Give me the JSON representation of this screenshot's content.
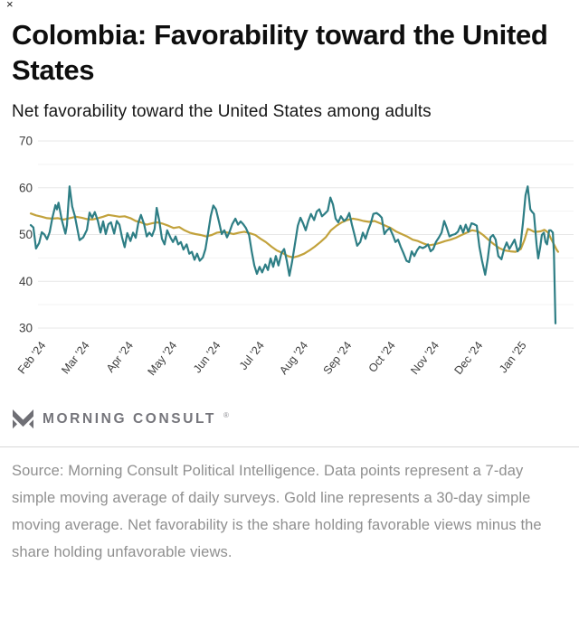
{
  "window": {
    "close_label": "×"
  },
  "header": {
    "title": "Colombia: Favorability toward the United States",
    "subtitle": "Net favorability toward the United States among adults"
  },
  "footer": {
    "logo_text": "MORNING CONSULT",
    "logo_registered": "®",
    "source": "Source: Morning Consult Political Intelligence. Data points represent a 7-day simple moving average of daily surveys. Gold line represents a 30-day simple moving average. Net favorability is the share holding favorable views minus the share holding unfavorable views."
  },
  "chart_data": {
    "type": "line",
    "title": "Colombia: Favorability toward the United States",
    "ylabel": "Net favorability",
    "ylim": [
      30,
      70
    ],
    "y_major_ticks": [
      70,
      60,
      50,
      40,
      30
    ],
    "y_minor_ticks": [
      65,
      55,
      45,
      35
    ],
    "grid": "horizontal",
    "legend": "none",
    "x_tick_labels": [
      "Feb '24",
      "Mar '24",
      "Apr '24",
      "May '24",
      "Jun '24",
      "Jul '24",
      "Aug '24",
      "Sep '24",
      "Oct '24",
      "Nov '24",
      "Dec '24",
      "Jan '25"
    ],
    "colors": {
      "teal_7day": "#2e7e85",
      "gold_30day": "#c2a23c"
    },
    "series": [
      {
        "name": "30-day simple moving average",
        "color": "#c2a23c",
        "points": [
          [
            0.0,
            54.5
          ],
          [
            0.01,
            54.1
          ],
          [
            0.021,
            53.8
          ],
          [
            0.031,
            53.5
          ],
          [
            0.041,
            53.4
          ],
          [
            0.052,
            53.5
          ],
          [
            0.062,
            53.2
          ],
          [
            0.074,
            53.5
          ],
          [
            0.086,
            53.8
          ],
          [
            0.097,
            53.6
          ],
          [
            0.107,
            53.3
          ],
          [
            0.117,
            53.2
          ],
          [
            0.128,
            53.5
          ],
          [
            0.138,
            53.8
          ],
          [
            0.148,
            54.2
          ],
          [
            0.159,
            54.0
          ],
          [
            0.169,
            53.8
          ],
          [
            0.179,
            53.9
          ],
          [
            0.19,
            53.5
          ],
          [
            0.2,
            52.9
          ],
          [
            0.21,
            52.6
          ],
          [
            0.221,
            52.1
          ],
          [
            0.231,
            52.4
          ],
          [
            0.241,
            52.6
          ],
          [
            0.252,
            52.3
          ],
          [
            0.262,
            51.9
          ],
          [
            0.272,
            51.4
          ],
          [
            0.283,
            51.6
          ],
          [
            0.293,
            50.9
          ],
          [
            0.303,
            50.4
          ],
          [
            0.314,
            50.1
          ],
          [
            0.324,
            49.9
          ],
          [
            0.334,
            49.6
          ],
          [
            0.345,
            49.9
          ],
          [
            0.355,
            50.4
          ],
          [
            0.366,
            50.6
          ],
          [
            0.376,
            50.4
          ],
          [
            0.386,
            50.1
          ],
          [
            0.397,
            50.4
          ],
          [
            0.407,
            50.6
          ],
          [
            0.417,
            50.3
          ],
          [
            0.428,
            49.9
          ],
          [
            0.438,
            49.1
          ],
          [
            0.448,
            48.4
          ],
          [
            0.459,
            47.4
          ],
          [
            0.469,
            46.6
          ],
          [
            0.479,
            46.1
          ],
          [
            0.49,
            45.4
          ],
          [
            0.5,
            45.1
          ],
          [
            0.51,
            45.4
          ],
          [
            0.521,
            45.9
          ],
          [
            0.531,
            46.6
          ],
          [
            0.541,
            47.4
          ],
          [
            0.552,
            48.4
          ],
          [
            0.562,
            49.4
          ],
          [
            0.572,
            50.9
          ],
          [
            0.583,
            51.9
          ],
          [
            0.593,
            52.6
          ],
          [
            0.603,
            53.1
          ],
          [
            0.614,
            53.4
          ],
          [
            0.624,
            53.2
          ],
          [
            0.634,
            52.9
          ],
          [
            0.645,
            52.7
          ],
          [
            0.655,
            52.9
          ],
          [
            0.666,
            52.4
          ],
          [
            0.676,
            51.9
          ],
          [
            0.686,
            51.4
          ],
          [
            0.697,
            50.6
          ],
          [
            0.707,
            50.1
          ],
          [
            0.717,
            49.6
          ],
          [
            0.728,
            48.9
          ],
          [
            0.738,
            48.6
          ],
          [
            0.748,
            48.1
          ],
          [
            0.759,
            47.7
          ],
          [
            0.769,
            47.9
          ],
          [
            0.779,
            48.2
          ],
          [
            0.79,
            48.6
          ],
          [
            0.8,
            48.9
          ],
          [
            0.81,
            49.3
          ],
          [
            0.821,
            49.9
          ],
          [
            0.831,
            50.4
          ],
          [
            0.841,
            50.9
          ],
          [
            0.852,
            50.7
          ],
          [
            0.862,
            49.9
          ],
          [
            0.872,
            48.9
          ],
          [
            0.883,
            47.9
          ],
          [
            0.893,
            47.1
          ],
          [
            0.903,
            46.6
          ],
          [
            0.914,
            46.4
          ],
          [
            0.924,
            46.3
          ],
          [
            0.934,
            46.9
          ],
          [
            0.941,
            48.9
          ],
          [
            0.947,
            51.2
          ],
          [
            0.952,
            51.0
          ],
          [
            0.959,
            50.6
          ],
          [
            0.966,
            50.6
          ],
          [
            0.972,
            50.7
          ],
          [
            0.979,
            51.0
          ],
          [
            0.986,
            50.4
          ],
          [
            0.991,
            49.2
          ],
          [
            0.997,
            47.9
          ],
          [
            1.002,
            46.8
          ],
          [
            1.005,
            46.3
          ]
        ]
      },
      {
        "name": "7-day simple moving average",
        "color": "#2e7e85",
        "points": [
          [
            0.0,
            52.0
          ],
          [
            0.005,
            51.5
          ],
          [
            0.01,
            47.0
          ],
          [
            0.016,
            48.2
          ],
          [
            0.021,
            50.5
          ],
          [
            0.026,
            50.0
          ],
          [
            0.031,
            49.0
          ],
          [
            0.036,
            50.5
          ],
          [
            0.041,
            53.5
          ],
          [
            0.047,
            56.3
          ],
          [
            0.05,
            55.4
          ],
          [
            0.053,
            56.8
          ],
          [
            0.059,
            53.2
          ],
          [
            0.066,
            50.2
          ],
          [
            0.069,
            52.0
          ],
          [
            0.074,
            60.3
          ],
          [
            0.079,
            56.0
          ],
          [
            0.084,
            54.0
          ],
          [
            0.093,
            48.8
          ],
          [
            0.1,
            49.4
          ],
          [
            0.107,
            51.0
          ],
          [
            0.112,
            54.7
          ],
          [
            0.117,
            53.6
          ],
          [
            0.122,
            54.8
          ],
          [
            0.128,
            52.9
          ],
          [
            0.133,
            50.4
          ],
          [
            0.138,
            52.8
          ],
          [
            0.143,
            50.1
          ],
          [
            0.148,
            52.2
          ],
          [
            0.153,
            52.6
          ],
          [
            0.159,
            50.2
          ],
          [
            0.164,
            52.9
          ],
          [
            0.169,
            52.1
          ],
          [
            0.174,
            49.4
          ],
          [
            0.179,
            47.3
          ],
          [
            0.184,
            50.3
          ],
          [
            0.19,
            48.6
          ],
          [
            0.195,
            50.4
          ],
          [
            0.2,
            49.3
          ],
          [
            0.205,
            52.5
          ],
          [
            0.21,
            54.2
          ],
          [
            0.216,
            52.2
          ],
          [
            0.221,
            49.6
          ],
          [
            0.226,
            50.4
          ],
          [
            0.231,
            49.7
          ],
          [
            0.236,
            51.2
          ],
          [
            0.24,
            55.7
          ],
          [
            0.245,
            52.9
          ],
          [
            0.25,
            49.1
          ],
          [
            0.255,
            47.9
          ],
          [
            0.26,
            50.9
          ],
          [
            0.266,
            49.4
          ],
          [
            0.271,
            48.4
          ],
          [
            0.276,
            49.6
          ],
          [
            0.281,
            47.9
          ],
          [
            0.286,
            48.4
          ],
          [
            0.291,
            46.8
          ],
          [
            0.297,
            47.9
          ],
          [
            0.302,
            45.9
          ],
          [
            0.307,
            46.3
          ],
          [
            0.312,
            44.6
          ],
          [
            0.317,
            45.9
          ],
          [
            0.322,
            44.4
          ],
          [
            0.328,
            45.1
          ],
          [
            0.333,
            46.9
          ],
          [
            0.338,
            50.3
          ],
          [
            0.343,
            53.9
          ],
          [
            0.348,
            56.2
          ],
          [
            0.353,
            55.4
          ],
          [
            0.359,
            52.6
          ],
          [
            0.364,
            50.1
          ],
          [
            0.369,
            50.9
          ],
          [
            0.374,
            49.4
          ],
          [
            0.379,
            50.6
          ],
          [
            0.384,
            52.2
          ],
          [
            0.39,
            53.4
          ],
          [
            0.395,
            52.1
          ],
          [
            0.4,
            52.8
          ],
          [
            0.405,
            52.2
          ],
          [
            0.41,
            51.4
          ],
          [
            0.416,
            49.9
          ],
          [
            0.421,
            46.4
          ],
          [
            0.426,
            43.4
          ],
          [
            0.431,
            41.6
          ],
          [
            0.436,
            43.1
          ],
          [
            0.441,
            41.9
          ],
          [
            0.447,
            43.6
          ],
          [
            0.452,
            42.4
          ],
          [
            0.457,
            44.9
          ],
          [
            0.462,
            43.1
          ],
          [
            0.467,
            45.4
          ],
          [
            0.472,
            43.4
          ],
          [
            0.478,
            46.1
          ],
          [
            0.483,
            46.9
          ],
          [
            0.488,
            44.4
          ],
          [
            0.493,
            41.2
          ],
          [
            0.498,
            44.1
          ],
          [
            0.503,
            47.6
          ],
          [
            0.509,
            51.9
          ],
          [
            0.514,
            53.6
          ],
          [
            0.519,
            52.4
          ],
          [
            0.524,
            50.9
          ],
          [
            0.529,
            52.9
          ],
          [
            0.534,
            54.4
          ],
          [
            0.54,
            53.1
          ],
          [
            0.545,
            54.9
          ],
          [
            0.55,
            55.4
          ],
          [
            0.555,
            53.9
          ],
          [
            0.56,
            54.4
          ],
          [
            0.566,
            55.1
          ],
          [
            0.571,
            57.9
          ],
          [
            0.576,
            56.4
          ],
          [
            0.581,
            53.4
          ],
          [
            0.586,
            52.6
          ],
          [
            0.591,
            53.9
          ],
          [
            0.597,
            52.9
          ],
          [
            0.602,
            53.4
          ],
          [
            0.607,
            54.6
          ],
          [
            0.612,
            52.1
          ],
          [
            0.617,
            49.9
          ],
          [
            0.622,
            47.6
          ],
          [
            0.628,
            48.4
          ],
          [
            0.633,
            50.4
          ],
          [
            0.638,
            49.1
          ],
          [
            0.643,
            50.9
          ],
          [
            0.648,
            52.4
          ],
          [
            0.653,
            54.4
          ],
          [
            0.659,
            54.6
          ],
          [
            0.664,
            54.2
          ],
          [
            0.669,
            53.6
          ],
          [
            0.674,
            50.1
          ],
          [
            0.679,
            50.9
          ],
          [
            0.684,
            51.4
          ],
          [
            0.69,
            49.9
          ],
          [
            0.695,
            48.4
          ],
          [
            0.7,
            48.9
          ],
          [
            0.705,
            47.4
          ],
          [
            0.71,
            46.1
          ],
          [
            0.716,
            44.4
          ],
          [
            0.721,
            44.1
          ],
          [
            0.726,
            46.4
          ],
          [
            0.731,
            45.4
          ],
          [
            0.736,
            46.6
          ],
          [
            0.741,
            47.4
          ],
          [
            0.747,
            47.1
          ],
          [
            0.752,
            47.4
          ],
          [
            0.757,
            47.9
          ],
          [
            0.762,
            46.4
          ],
          [
            0.767,
            46.9
          ],
          [
            0.772,
            48.4
          ],
          [
            0.778,
            49.4
          ],
          [
            0.783,
            50.4
          ],
          [
            0.788,
            52.9
          ],
          [
            0.793,
            51.4
          ],
          [
            0.798,
            49.6
          ],
          [
            0.803,
            49.9
          ],
          [
            0.809,
            50.1
          ],
          [
            0.814,
            50.6
          ],
          [
            0.819,
            51.9
          ],
          [
            0.824,
            50.4
          ],
          [
            0.829,
            52.1
          ],
          [
            0.834,
            50.6
          ],
          [
            0.84,
            52.4
          ],
          [
            0.845,
            52.2
          ],
          [
            0.85,
            51.9
          ],
          [
            0.855,
            47.4
          ],
          [
            0.86,
            44.4
          ],
          [
            0.866,
            41.4
          ],
          [
            0.871,
            44.9
          ],
          [
            0.876,
            49.4
          ],
          [
            0.881,
            49.9
          ],
          [
            0.886,
            48.9
          ],
          [
            0.891,
            45.4
          ],
          [
            0.897,
            44.7
          ],
          [
            0.902,
            46.9
          ],
          [
            0.907,
            48.3
          ],
          [
            0.912,
            46.9
          ],
          [
            0.917,
            47.9
          ],
          [
            0.922,
            48.9
          ],
          [
            0.928,
            46.4
          ],
          [
            0.933,
            47.4
          ],
          [
            0.938,
            52.4
          ],
          [
            0.943,
            58.4
          ],
          [
            0.947,
            60.3
          ],
          [
            0.952,
            55.4
          ],
          [
            0.955,
            54.9
          ],
          [
            0.959,
            54.4
          ],
          [
            0.964,
            47.9
          ],
          [
            0.967,
            44.9
          ],
          [
            0.971,
            47.4
          ],
          [
            0.974,
            49.9
          ],
          [
            0.978,
            50.4
          ],
          [
            0.981,
            48.4
          ],
          [
            0.984,
            47.9
          ],
          [
            0.988,
            50.9
          ],
          [
            0.991,
            50.9
          ],
          [
            0.995,
            50.4
          ],
          [
            0.997,
            46.0
          ],
          [
            1.0,
            31.0
          ]
        ]
      }
    ]
  }
}
